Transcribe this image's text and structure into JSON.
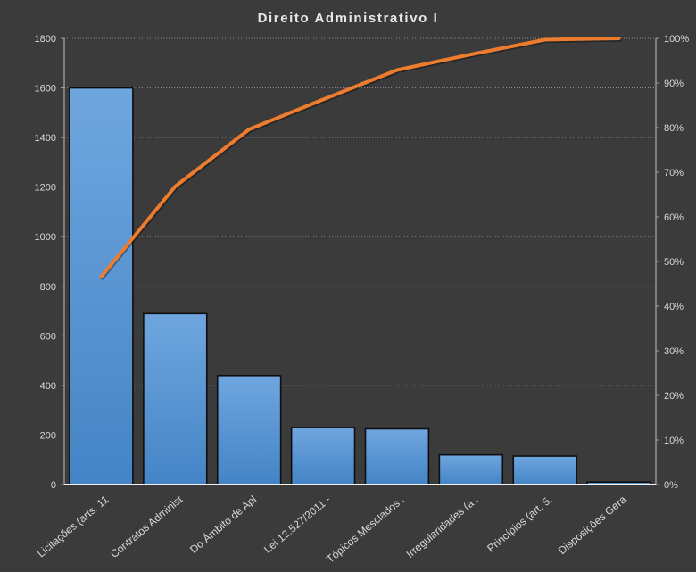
{
  "title": "Direito Administrativo I",
  "chart_data": {
    "type": "bar",
    "subtype": "pareto-combo-bar-line",
    "title": "Direito Administrativo I",
    "categories": [
      "Licitações (arts. 11",
      "Contratos Administ",
      "Do Âmbito de Apl",
      "Lei 12.527/2011 -",
      "Tópicos Mesclados .",
      "Irregularidades (a .",
      "Princípios (art. 5.",
      "Disposições Gera"
    ],
    "series": [
      {
        "name": "frequency-bars",
        "type": "bar",
        "values": [
          1600,
          690,
          440,
          230,
          225,
          120,
          115,
          10
        ]
      },
      {
        "name": "cumulative-percent-line",
        "type": "line",
        "values": [
          46.6,
          66.8,
          79.6,
          86.3,
          92.9,
          96.4,
          99.7,
          100
        ]
      }
    ],
    "axis_left": {
      "min": 0,
      "max": 1800,
      "step": 200,
      "suffix": ""
    },
    "axis_right": {
      "min": 0,
      "max": 100,
      "step": 10,
      "suffix": "%"
    },
    "grid": "horizontal-dotted",
    "legend": "none",
    "colors": {
      "background": "#3b3b3b",
      "bar_fill_top": "#6fa6df",
      "bar_fill_bottom": "#4484c6",
      "bar_border": "#0e0e0e",
      "line": "#ed7c2f",
      "gridline": "#9a9a9a",
      "axis_line": "#bfbfbf",
      "baseline": "#f2f2f2",
      "tick_label": "#d9d9d9",
      "title_text": "#e8e8e8"
    }
  }
}
